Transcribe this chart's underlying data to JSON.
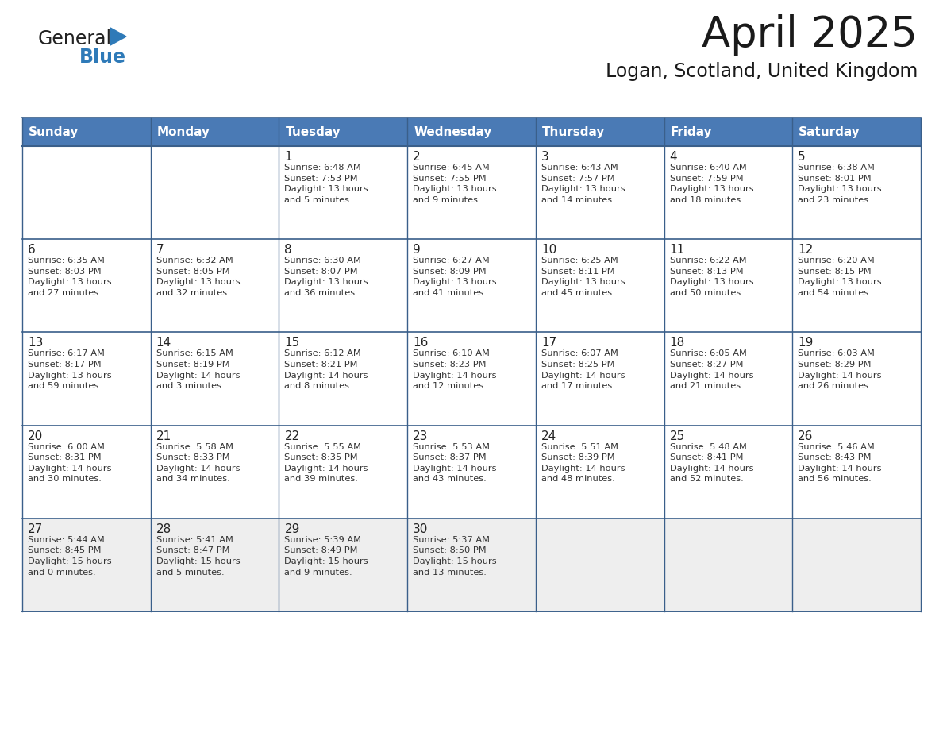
{
  "title": "April 2025",
  "subtitle": "Logan, Scotland, United Kingdom",
  "header_bg": "#4a7ab5",
  "header_text_color": "#ffffff",
  "days_of_week": [
    "Sunday",
    "Monday",
    "Tuesday",
    "Wednesday",
    "Thursday",
    "Friday",
    "Saturday"
  ],
  "row_bg_white": "#ffffff",
  "row_bg_gray": "#f0f0f0",
  "row_bgs": [
    "#ffffff",
    "#ffffff",
    "#ffffff",
    "#ffffff",
    "#f0f0f0"
  ],
  "cell_border_color": "#3a5f8a",
  "date_color": "#222222",
  "info_color": "#333333",
  "title_color": "#1a1a1a",
  "subtitle_color": "#1a1a1a",
  "weeks": [
    {
      "days": [
        {
          "date": "",
          "info": ""
        },
        {
          "date": "",
          "info": ""
        },
        {
          "date": "1",
          "info": "Sunrise: 6:48 AM\nSunset: 7:53 PM\nDaylight: 13 hours\nand 5 minutes."
        },
        {
          "date": "2",
          "info": "Sunrise: 6:45 AM\nSunset: 7:55 PM\nDaylight: 13 hours\nand 9 minutes."
        },
        {
          "date": "3",
          "info": "Sunrise: 6:43 AM\nSunset: 7:57 PM\nDaylight: 13 hours\nand 14 minutes."
        },
        {
          "date": "4",
          "info": "Sunrise: 6:40 AM\nSunset: 7:59 PM\nDaylight: 13 hours\nand 18 minutes."
        },
        {
          "date": "5",
          "info": "Sunrise: 6:38 AM\nSunset: 8:01 PM\nDaylight: 13 hours\nand 23 minutes."
        }
      ]
    },
    {
      "days": [
        {
          "date": "6",
          "info": "Sunrise: 6:35 AM\nSunset: 8:03 PM\nDaylight: 13 hours\nand 27 minutes."
        },
        {
          "date": "7",
          "info": "Sunrise: 6:32 AM\nSunset: 8:05 PM\nDaylight: 13 hours\nand 32 minutes."
        },
        {
          "date": "8",
          "info": "Sunrise: 6:30 AM\nSunset: 8:07 PM\nDaylight: 13 hours\nand 36 minutes."
        },
        {
          "date": "9",
          "info": "Sunrise: 6:27 AM\nSunset: 8:09 PM\nDaylight: 13 hours\nand 41 minutes."
        },
        {
          "date": "10",
          "info": "Sunrise: 6:25 AM\nSunset: 8:11 PM\nDaylight: 13 hours\nand 45 minutes."
        },
        {
          "date": "11",
          "info": "Sunrise: 6:22 AM\nSunset: 8:13 PM\nDaylight: 13 hours\nand 50 minutes."
        },
        {
          "date": "12",
          "info": "Sunrise: 6:20 AM\nSunset: 8:15 PM\nDaylight: 13 hours\nand 54 minutes."
        }
      ]
    },
    {
      "days": [
        {
          "date": "13",
          "info": "Sunrise: 6:17 AM\nSunset: 8:17 PM\nDaylight: 13 hours\nand 59 minutes."
        },
        {
          "date": "14",
          "info": "Sunrise: 6:15 AM\nSunset: 8:19 PM\nDaylight: 14 hours\nand 3 minutes."
        },
        {
          "date": "15",
          "info": "Sunrise: 6:12 AM\nSunset: 8:21 PM\nDaylight: 14 hours\nand 8 minutes."
        },
        {
          "date": "16",
          "info": "Sunrise: 6:10 AM\nSunset: 8:23 PM\nDaylight: 14 hours\nand 12 minutes."
        },
        {
          "date": "17",
          "info": "Sunrise: 6:07 AM\nSunset: 8:25 PM\nDaylight: 14 hours\nand 17 minutes."
        },
        {
          "date": "18",
          "info": "Sunrise: 6:05 AM\nSunset: 8:27 PM\nDaylight: 14 hours\nand 21 minutes."
        },
        {
          "date": "19",
          "info": "Sunrise: 6:03 AM\nSunset: 8:29 PM\nDaylight: 14 hours\nand 26 minutes."
        }
      ]
    },
    {
      "days": [
        {
          "date": "20",
          "info": "Sunrise: 6:00 AM\nSunset: 8:31 PM\nDaylight: 14 hours\nand 30 minutes."
        },
        {
          "date": "21",
          "info": "Sunrise: 5:58 AM\nSunset: 8:33 PM\nDaylight: 14 hours\nand 34 minutes."
        },
        {
          "date": "22",
          "info": "Sunrise: 5:55 AM\nSunset: 8:35 PM\nDaylight: 14 hours\nand 39 minutes."
        },
        {
          "date": "23",
          "info": "Sunrise: 5:53 AM\nSunset: 8:37 PM\nDaylight: 14 hours\nand 43 minutes."
        },
        {
          "date": "24",
          "info": "Sunrise: 5:51 AM\nSunset: 8:39 PM\nDaylight: 14 hours\nand 48 minutes."
        },
        {
          "date": "25",
          "info": "Sunrise: 5:48 AM\nSunset: 8:41 PM\nDaylight: 14 hours\nand 52 minutes."
        },
        {
          "date": "26",
          "info": "Sunrise: 5:46 AM\nSunset: 8:43 PM\nDaylight: 14 hours\nand 56 minutes."
        }
      ]
    },
    {
      "days": [
        {
          "date": "27",
          "info": "Sunrise: 5:44 AM\nSunset: 8:45 PM\nDaylight: 15 hours\nand 0 minutes."
        },
        {
          "date": "28",
          "info": "Sunrise: 5:41 AM\nSunset: 8:47 PM\nDaylight: 15 hours\nand 5 minutes."
        },
        {
          "date": "29",
          "info": "Sunrise: 5:39 AM\nSunset: 8:49 PM\nDaylight: 15 hours\nand 9 minutes."
        },
        {
          "date": "30",
          "info": "Sunrise: 5:37 AM\nSunset: 8:50 PM\nDaylight: 15 hours\nand 13 minutes."
        },
        {
          "date": "",
          "info": ""
        },
        {
          "date": "",
          "info": ""
        },
        {
          "date": "",
          "info": ""
        }
      ]
    }
  ],
  "logo_general_color": "#222222",
  "logo_blue_color": "#2e7ab8",
  "figwidth": 11.88,
  "figheight": 9.18,
  "dpi": 100
}
